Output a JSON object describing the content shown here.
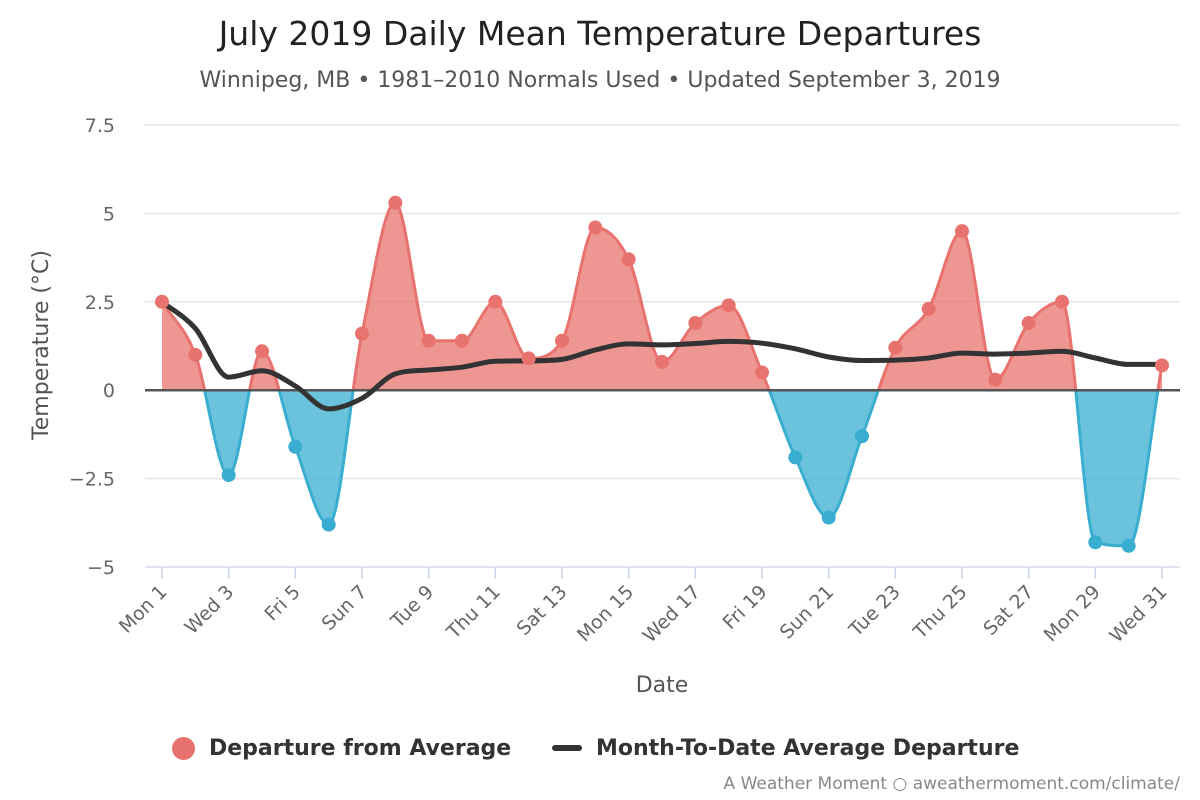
{
  "chart_data": {
    "type": "area",
    "title": "July 2019 Daily Mean Temperature Departures",
    "subtitle": "Winnipeg, MB • 1981–2010 Normals Used • Updated September 3, 2019",
    "xlabel": "Date",
    "ylabel": "Temperature (°C)",
    "ylim": [
      -5,
      7.5
    ],
    "yticks": [
      7.5,
      5,
      2.5,
      0,
      -2.5,
      -5
    ],
    "ytick_labels": [
      "7.5",
      "5",
      "2.5",
      "0",
      "−2.5",
      "−5"
    ],
    "x": [
      1,
      2,
      3,
      4,
      5,
      6,
      7,
      8,
      9,
      10,
      11,
      12,
      13,
      14,
      15,
      16,
      17,
      18,
      19,
      20,
      21,
      22,
      23,
      24,
      25,
      26,
      27,
      28,
      29,
      30,
      31
    ],
    "xtick_days": [
      1,
      3,
      5,
      7,
      9,
      11,
      13,
      15,
      17,
      19,
      21,
      23,
      25,
      27,
      29,
      31
    ],
    "xtick_labels": [
      "Mon 1",
      "Wed 3",
      "Fri 5",
      "Sun 7",
      "Tue 9",
      "Thu 11",
      "Sat 13",
      "Mon 15",
      "Wed 17",
      "Fri 19",
      "Sun 21",
      "Tue 23",
      "Thu 25",
      "Sat 27",
      "Mon 29",
      "Wed 31"
    ],
    "grid": true,
    "legend_position": "bottom-center",
    "series": [
      {
        "name": "Departure from Average",
        "type": "area",
        "positive_color": "#e8736e",
        "negative_color": "#3aaed0",
        "values": [
          2.5,
          1.0,
          -2.4,
          1.1,
          -1.6,
          -3.8,
          1.6,
          5.3,
          1.4,
          1.4,
          2.5,
          0.9,
          1.4,
          4.6,
          3.7,
          0.8,
          1.9,
          2.4,
          0.5,
          -1.9,
          -3.6,
          -1.3,
          1.2,
          2.3,
          4.5,
          0.3,
          1.9,
          2.5,
          -4.3,
          -4.4,
          0.7
        ]
      },
      {
        "name": "Month-To-Date Average Departure",
        "type": "line",
        "color": "#333333",
        "values": [
          2.5,
          1.75,
          0.37,
          0.55,
          0.12,
          -0.53,
          -0.23,
          0.46,
          0.57,
          0.65,
          0.82,
          0.83,
          0.87,
          1.14,
          1.31,
          1.28,
          1.32,
          1.38,
          1.33,
          1.17,
          0.94,
          0.84,
          0.85,
          0.91,
          1.05,
          1.02,
          1.05,
          1.1,
          0.91,
          0.73,
          0.73
        ]
      }
    ]
  },
  "legend": {
    "departure_label": "Departure from Average",
    "mtd_label": "Month-To-Date Average Departure"
  },
  "credits": "A Weather Moment ○ aweathermoment.com/climate/",
  "colors": {
    "grid": "#e6e6e6",
    "zero_line": "#555555",
    "axis_text": "#666666"
  }
}
